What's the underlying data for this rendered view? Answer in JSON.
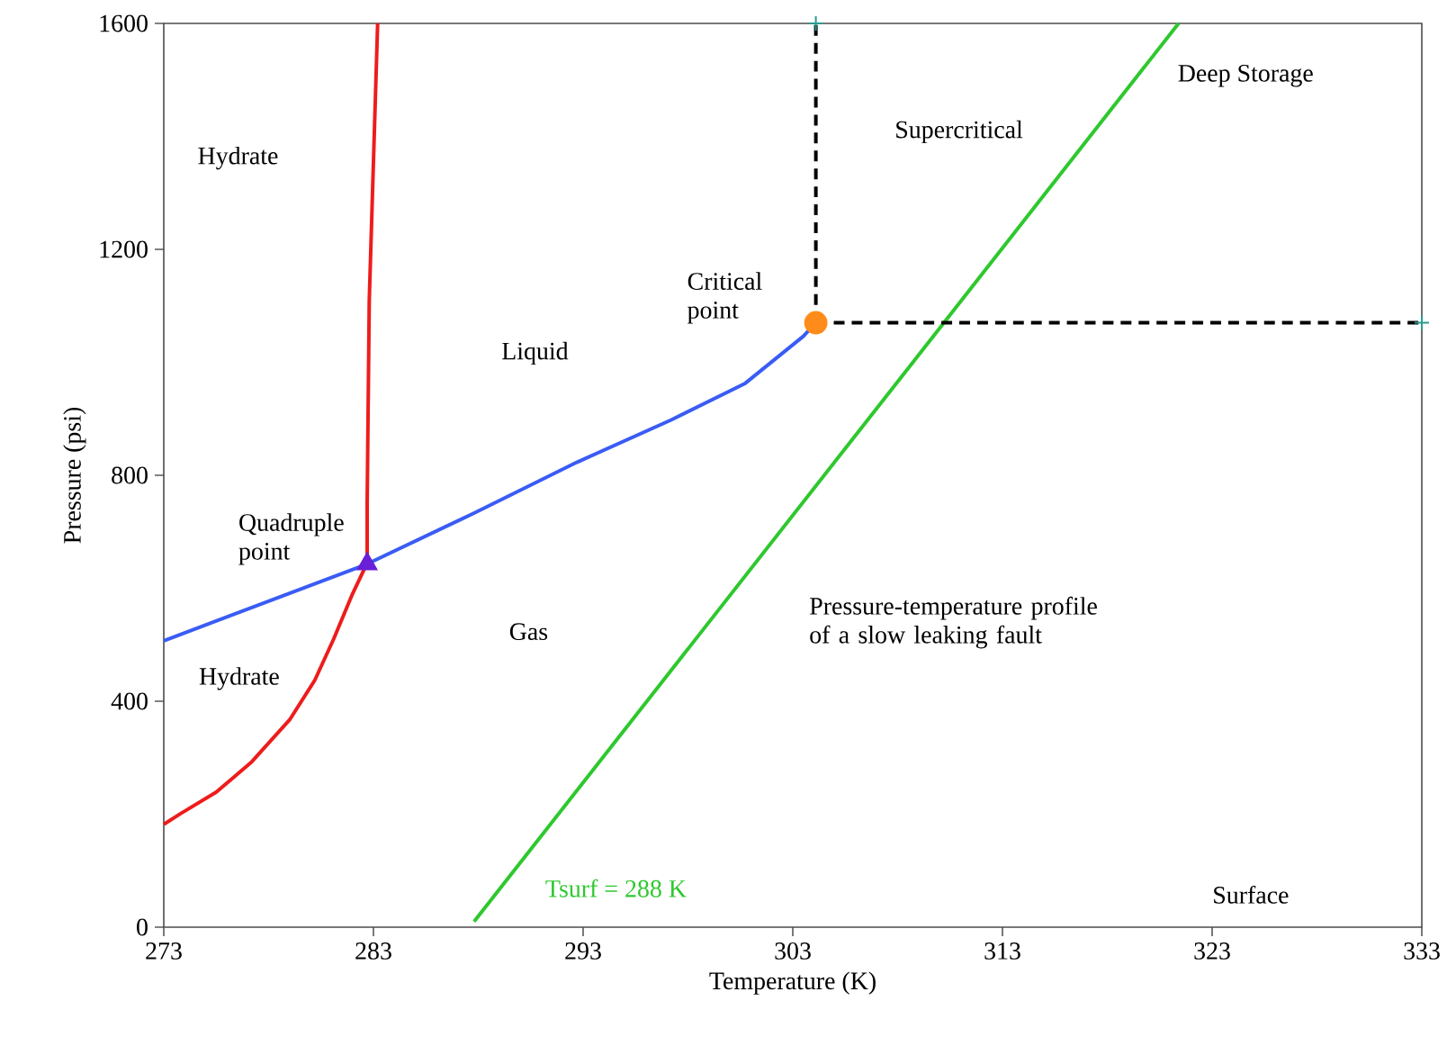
{
  "chart_data": {
    "type": "line",
    "xlabel": "Temperature (K)",
    "ylabel": "Pressure (psi)",
    "xlim": [
      273,
      333
    ],
    "ylim": [
      0,
      1600
    ],
    "xticks": [
      273,
      283,
      293,
      303,
      313,
      323,
      333
    ],
    "yticks": [
      0,
      400,
      800,
      1200,
      1600
    ],
    "grid": false,
    "series": [
      {
        "color": "#ee1c1c",
        "x": [
          273,
          273.8,
          275.5,
          277.2,
          279.0,
          280.2,
          281.1,
          282.0,
          282.6,
          282.7,
          282.7,
          282.8,
          283.2
        ],
        "values": [
          182,
          201,
          239,
          293,
          367,
          437,
          510,
          590,
          637,
          643,
          749,
          1110,
          1600
        ]
      },
      {
        "color": "#3a5cf5",
        "x": [
          273,
          282.7,
          287.8,
          292.7,
          297.2,
          300.7,
          303.5,
          304.1
        ],
        "values": [
          507,
          643,
          733,
          823,
          898,
          962,
          1046,
          1070
        ]
      },
      {
        "type": "line",
        "color": "#2ec82e",
        "name": "Tsurf = 288 K",
        "x": [
          287.8,
          310.1,
          321.4
        ],
        "values": [
          10,
          1065,
          1600
        ]
      },
      {
        "type": "line",
        "color": "#000000",
        "line_style": "dashed",
        "x": [
          304.1,
          304.1
        ],
        "values": [
          1070,
          1600
        ]
      },
      {
        "type": "line",
        "color": "#000000",
        "line_style": "dashed",
        "x": [
          304.1,
          333
        ],
        "values": [
          1070,
          1070
        ]
      },
      {
        "type": "scatter",
        "color": "#2a9d8f",
        "marker": "cross",
        "x": [
          304.1,
          333
        ],
        "values": [
          1600,
          1070
        ]
      },
      {
        "type": "scatter",
        "color": "#6a1fd8",
        "marker": "triangle",
        "name": "Quadruple point",
        "x": [
          282.7
        ],
        "values": [
          643
        ]
      },
      {
        "type": "scatter",
        "color": "#ff8c1a",
        "marker": "circle",
        "name": "Critical point",
        "x": [
          304.1
        ],
        "values": [
          1070
        ]
      }
    ],
    "annotations": [
      "Hydrate",
      "Hydrate",
      "Liquid",
      "Gas",
      "Supercritical",
      "Deep Storage",
      "Pressure-temperature profile of a slow leaking fault",
      "Surface"
    ]
  }
}
